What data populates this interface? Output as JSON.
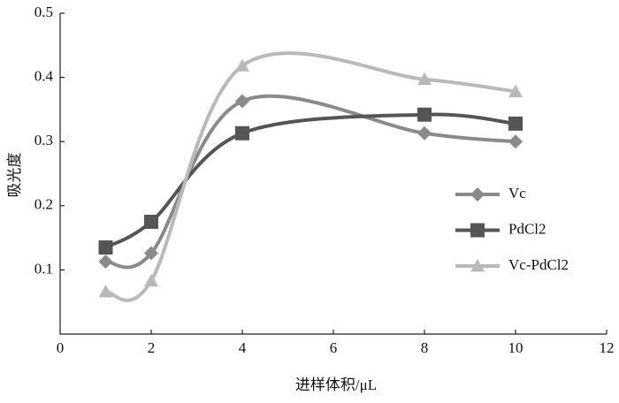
{
  "chart_data": {
    "type": "line",
    "x_label": "进样体积/μL",
    "y_label": "吸光度",
    "x": [
      1,
      2,
      4,
      8,
      10
    ],
    "series": [
      {
        "name": "Vc",
        "color": "#8a8a8a",
        "marker": "diamond",
        "values": [
          0.113,
          0.126,
          0.363,
          0.313,
          0.3
        ]
      },
      {
        "name": "PdCl2",
        "color": "#555555",
        "marker": "square",
        "values": [
          0.135,
          0.175,
          0.313,
          0.342,
          0.328
        ]
      },
      {
        "name": "Vc-PdCl2",
        "color": "#b9b9b9",
        "marker": "triangle",
        "values": [
          0.066,
          0.083,
          0.418,
          0.397,
          0.378
        ]
      }
    ],
    "xlim": [
      0,
      12
    ],
    "xticks": [
      0,
      2,
      4,
      6,
      8,
      10,
      12
    ],
    "ylim": [
      0,
      0.5
    ],
    "yticks": [
      0.1,
      0.2,
      0.3,
      0.4,
      0.5
    ],
    "smooth": true,
    "grid": false,
    "legend": "right"
  }
}
